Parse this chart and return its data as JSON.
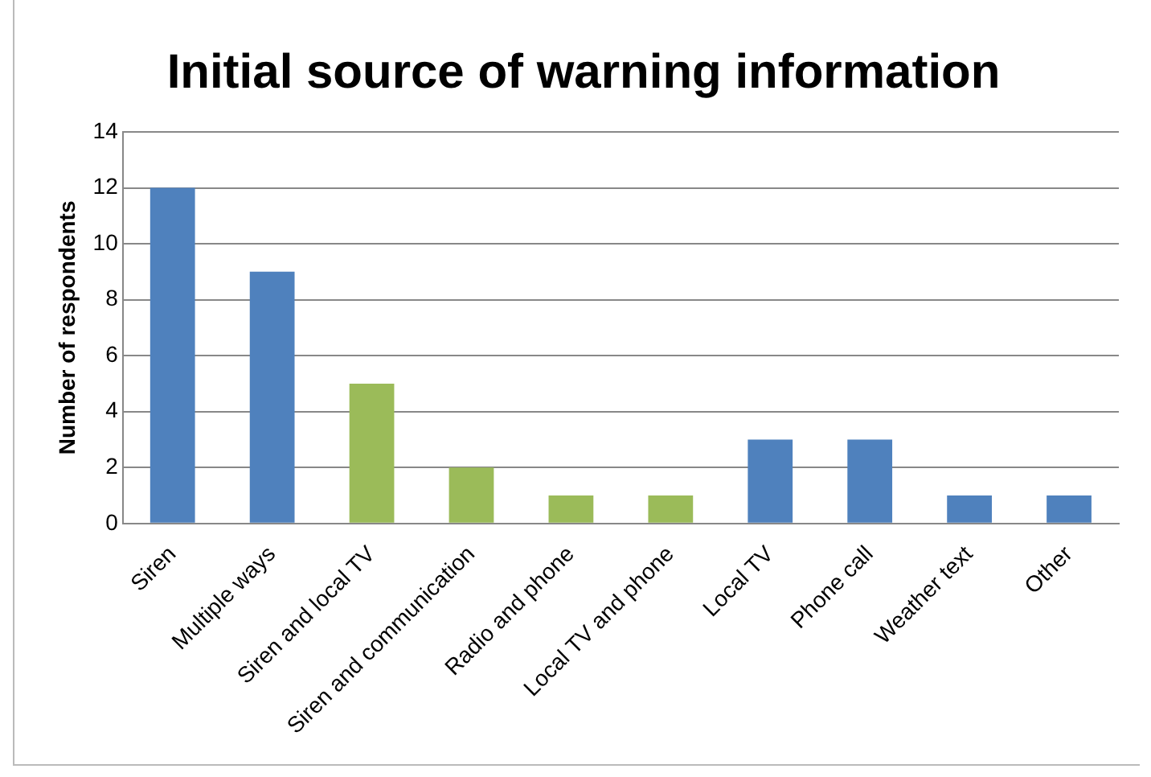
{
  "chart_data": {
    "type": "bar",
    "title": "Initial source of warning information",
    "ylabel": "Number of respondents",
    "categories": [
      "Siren",
      "Multiple ways",
      "Siren and local TV",
      "Siren and communication",
      "Radio and phone",
      "Local TV and phone",
      "Local TV",
      "Phone call",
      "Weather text",
      "Other"
    ],
    "values": [
      12,
      9,
      5,
      2,
      1,
      1,
      3,
      3,
      1,
      1
    ],
    "colors": [
      "#4f81bd",
      "#4f81bd",
      "#9bbb59",
      "#9bbb59",
      "#9bbb59",
      "#9bbb59",
      "#4f81bd",
      "#4f81bd",
      "#4f81bd",
      "#4f81bd"
    ],
    "ylim": [
      0,
      14
    ],
    "yticks": [
      0,
      2,
      4,
      6,
      8,
      10,
      12,
      14
    ],
    "grid": "y",
    "legend": false
  }
}
